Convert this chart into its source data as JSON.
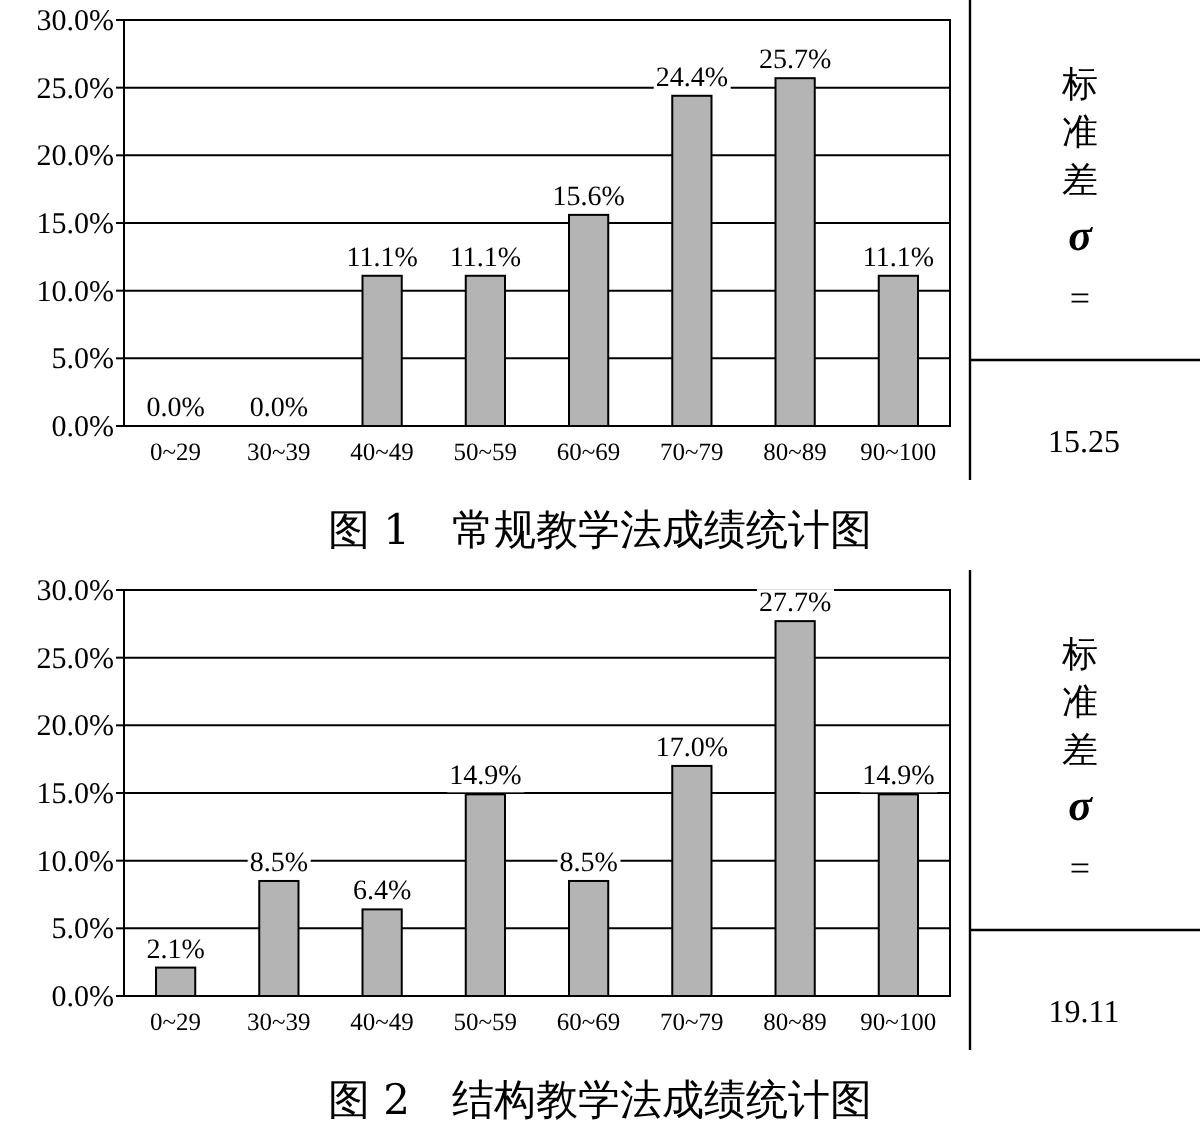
{
  "chart_data": [
    {
      "type": "bar",
      "title": "图 1　常规教学法成绩统计图",
      "categories": [
        "0~29",
        "30~39",
        "40~49",
        "50~59",
        "60~69",
        "70~79",
        "80~89",
        "90~100"
      ],
      "values": [
        0.0,
        0.0,
        11.1,
        11.1,
        15.6,
        24.4,
        25.7,
        11.1
      ],
      "value_labels": [
        "0.0%",
        "0.0%",
        "11.1%",
        "11.1%",
        "15.6%",
        "24.4%",
        "25.7%",
        "11.1%"
      ],
      "color": "#b4b4b4",
      "ylim": [
        0,
        30
      ],
      "yticks": [
        {
          "value": 0,
          "label": "0.0%"
        },
        {
          "value": 5,
          "label": "5.0%"
        },
        {
          "value": 10,
          "label": "10.0%"
        },
        {
          "value": 15,
          "label": "15.0%"
        },
        {
          "value": 20,
          "label": "20.0%"
        },
        {
          "value": 25,
          "label": "25.0%"
        },
        {
          "value": 30,
          "label": "30.0%"
        }
      ],
      "grid": "y",
      "annotations": [
        "标准差",
        "σ",
        "=",
        "15.25"
      ]
    },
    {
      "type": "bar",
      "title": "图 2　结构教学法成绩统计图",
      "categories": [
        "0~29",
        "30~39",
        "40~49",
        "50~59",
        "60~69",
        "70~79",
        "80~89",
        "90~100"
      ],
      "values": [
        2.1,
        8.5,
        6.4,
        14.9,
        8.5,
        17.0,
        27.7,
        14.9
      ],
      "value_labels": [
        "2.1%",
        "8.5%",
        "6.4%",
        "14.9%",
        "8.5%",
        "17.0%",
        "27.7%",
        "14.9%"
      ],
      "color": "#b4b4b4",
      "ylim": [
        0,
        30
      ],
      "yticks": [
        {
          "value": 0,
          "label": "0.0%"
        },
        {
          "value": 5,
          "label": "5.0%"
        },
        {
          "value": 10,
          "label": "10.0%"
        },
        {
          "value": 15,
          "label": "15.0%"
        },
        {
          "value": 20,
          "label": "20.0%"
        },
        {
          "value": 25,
          "label": "25.0%"
        },
        {
          "value": 30,
          "label": "30.0%"
        }
      ],
      "grid": "y",
      "annotations": [
        "标准差",
        "σ",
        "=",
        "19.11"
      ]
    }
  ]
}
